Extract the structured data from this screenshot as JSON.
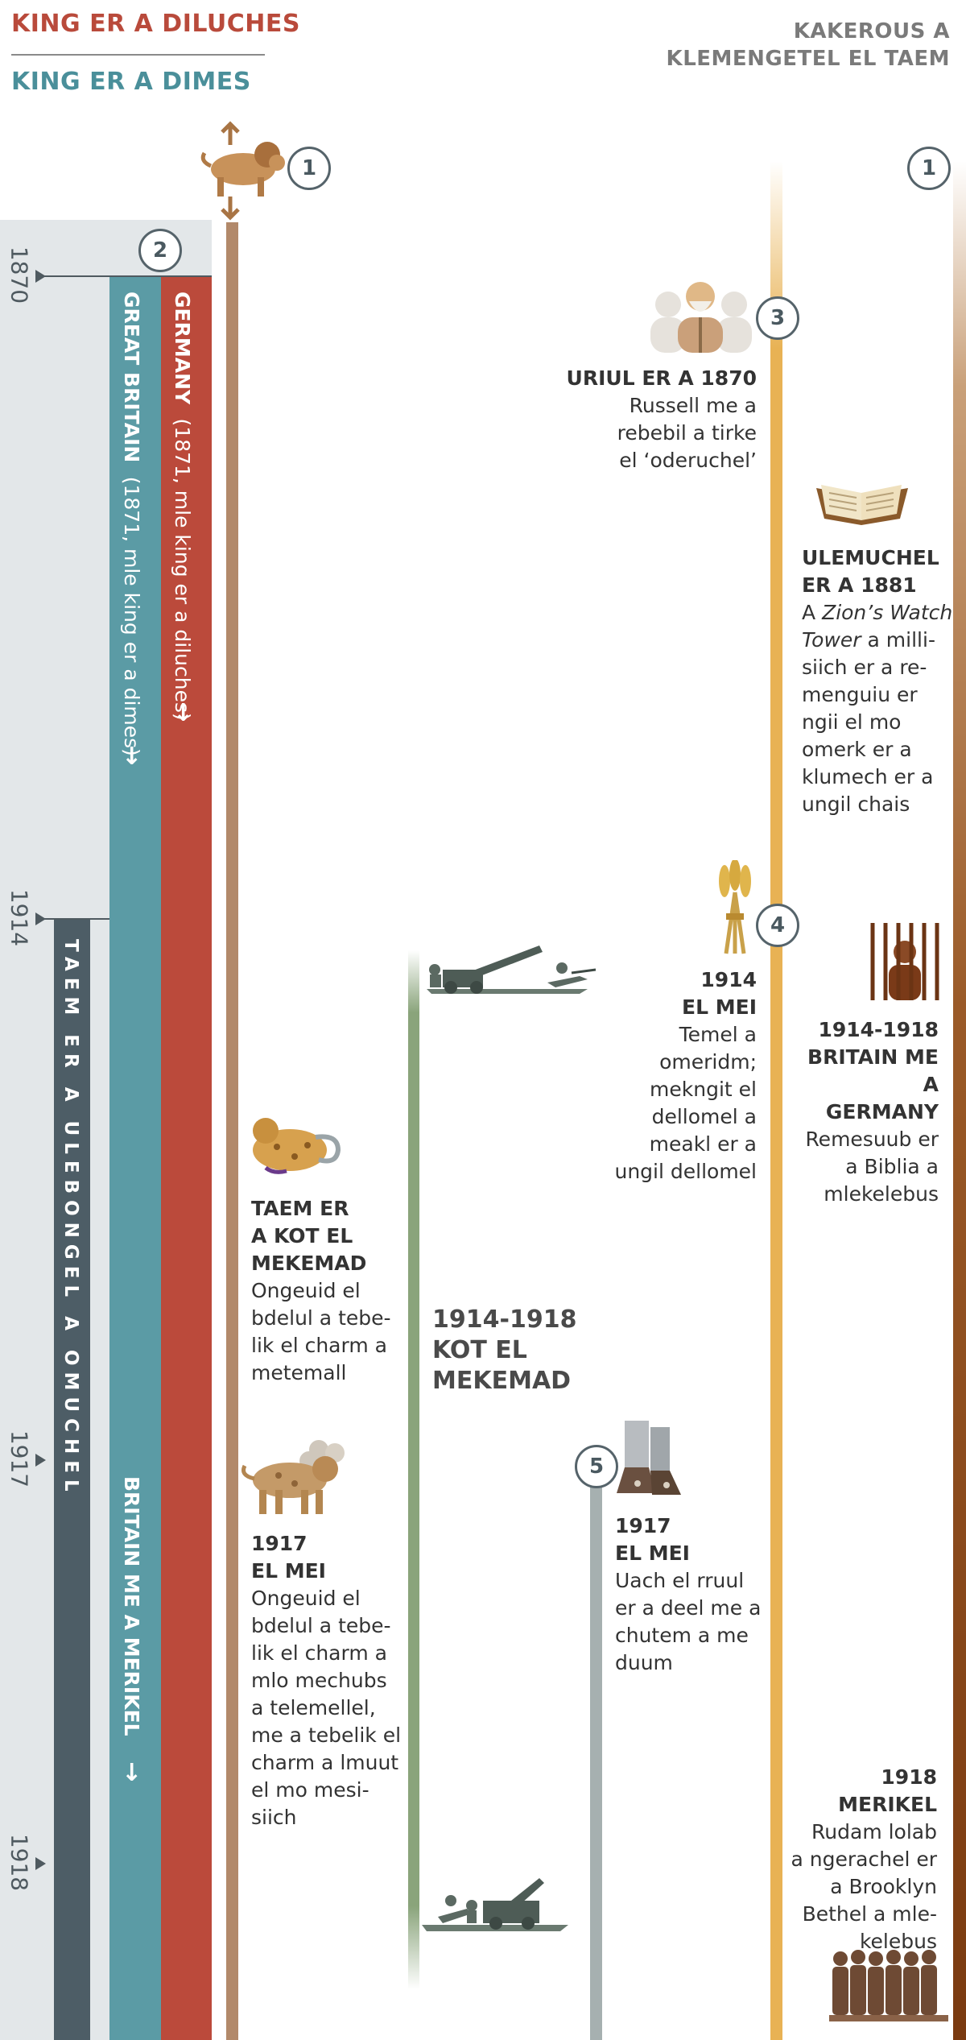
{
  "header": {
    "legend_red": "KING ER A DILUCHES",
    "legend_teal": "KING ER A DIMES",
    "right_line1": "KAKEROUS A",
    "right_line2": "KLEMENGETEL EL TAEM"
  },
  "markers": {
    "m1_left": "1",
    "m1_right": "1",
    "m2": "2",
    "m3": "3",
    "m4": "4",
    "m5": "5"
  },
  "years": [
    "1870",
    "1914",
    "1917",
    "1918"
  ],
  "bars": {
    "germany_title": "GERMANY",
    "germany_sub": "(1871, mle king er a diluches)",
    "britain_title": "GREAT BRITAIN",
    "britain_sub": "(1871, mle king er a dimes)",
    "britain_america": "BRITAIN ME A MERIKEL",
    "taem": "TAEM ER A ULEBONGEL A OMUCHEL",
    "arrow": "↓"
  },
  "events": {
    "e1870_title": "URIUL ER A 1870",
    "e1870_l1": "Russell me a",
    "e1870_l2": "rebebil a tirke",
    "e1870_l3": "el ‘oderuchel’",
    "e1881_t1": "ULEMUCHEL",
    "e1881_t2": "ER A 1881",
    "e1881_l1a": "A ",
    "e1881_l1b": "Zion’s Watch",
    "e1881_l2a": "Tower",
    "e1881_l2b": " a milli-",
    "e1881_l3": "siich er a re-",
    "e1881_l4": "menguiu er",
    "e1881_l5": "ngii el mo",
    "e1881_l6": "omerk er a",
    "e1881_l7": "klumech er a",
    "e1881_l8": "ungil chais",
    "e1914_t1": "1914",
    "e1914_t2": "EL MEI",
    "e1914_l1": "Temel a",
    "e1914_l2": "omeridm;",
    "e1914_l3": "mekngit el",
    "e1914_l4": "dellomel a",
    "e1914_l5": "meakl er a",
    "e1914_l6": "ungil dellomel",
    "ebm_t1": "1914-1918",
    "ebm_t2": "BRITAIN ME A",
    "ebm_t3": "GERMANY",
    "ebm_l1": "Remesuub er",
    "ebm_l2": "a Biblia a",
    "ebm_l3": "mlekelebus",
    "ewar_t1": "TAEM ER",
    "ewar_t2": "A KOT EL",
    "ewar_t3": "MEKEMAD",
    "ewar_l1": "Ongeuid el",
    "ewar_l2": "bdelul a tebe-",
    "ewar_l3": "lik el charm a",
    "ewar_l4": "metemall",
    "wwi_l1": "1914-1918",
    "wwi_l2": "KOT EL",
    "wwi_l3": "MEKEMAD",
    "e1917a_t1": "1917",
    "e1917a_t2": "EL MEI",
    "e1917a_l1": "Ongeuid el",
    "e1917a_l2": "bdelul a tebe-",
    "e1917a_l3": "lik el charm a",
    "e1917a_l4": "mlo mechubs",
    "e1917a_l5": "a telemellel,",
    "e1917a_l6": "me a tebelik el",
    "e1917a_l7": "charm a lmuut",
    "e1917a_l8": "el mo mesi-",
    "e1917a_l9": "siich",
    "e1917b_t1": "1917",
    "e1917b_t2": "EL MEI",
    "e1917b_l1": "Uach el rruul",
    "e1917b_l2": "er a deel me a",
    "e1917b_l3": "chutem a me",
    "e1917b_l4": "duum",
    "e1918_t1": "1918 MERIKEL",
    "e1918_l1": "Rudam lolab",
    "e1918_l2": "a ngerachel er",
    "e1918_l3": "a Brooklyn",
    "e1918_l4": "Bethel a mle-",
    "e1918_l5": "kelebus"
  },
  "colors": {
    "red": "#bb4a3b",
    "teal": "#5b9ba5",
    "dark": "#4d5d66",
    "gold": "#e8b254",
    "brown": "#7a3a10",
    "green": "#8aa47b",
    "grey": "#a6b0b0"
  },
  "icons": [
    "lion-beast-icon",
    "russell-portrait-icon",
    "open-bible-icon",
    "wheat-sheaf-icon",
    "prisoner-icon",
    "wounded-beast-icon",
    "artillery-soldiers-icon",
    "two-horned-beast-icon",
    "feet-icon",
    "brothers-group-icon"
  ]
}
